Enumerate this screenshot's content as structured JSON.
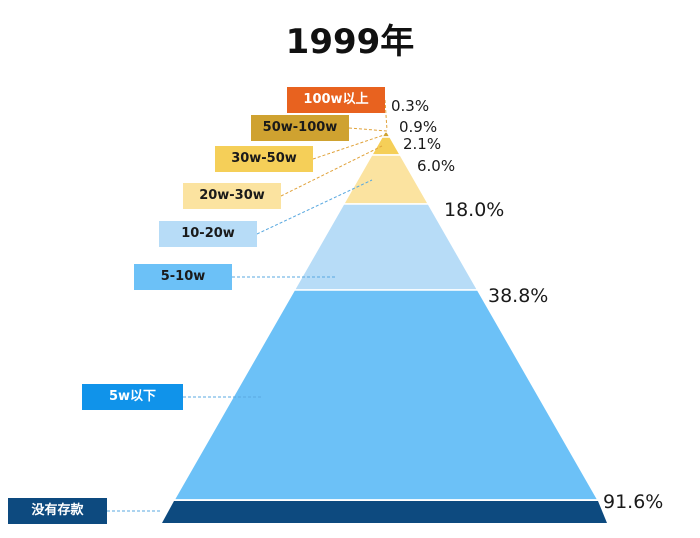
{
  "title": "1999年",
  "levels": [
    {
      "label": "100w以上",
      "percent": "0.3%",
      "color": "#e8621f",
      "text_color": "#ffffff"
    },
    {
      "label": "50w-100w",
      "percent": "0.9%",
      "color": "#cfa230",
      "text_color": "#1a1a1a"
    },
    {
      "label": "30w-50w",
      "percent": "2.1%",
      "color": "#f5cf58",
      "text_color": "#1a1a1a"
    },
    {
      "label": "20w-30w",
      "percent": "6.0%",
      "color": "#fbe3a0",
      "text_color": "#1a1a1a"
    },
    {
      "label": "10-20w",
      "percent": "18.0%",
      "color": "#b7dcf7",
      "text_color": "#1a1a1a"
    },
    {
      "label": "5-10w",
      "percent": "38.8%",
      "color": "#6cc1f7",
      "text_color": "#1a1a1a"
    },
    {
      "label": "5w以下",
      "percent": "",
      "color": "#1093ea",
      "text_color": "#ffffff"
    },
    {
      "label": "没有存款",
      "percent": "91.6%",
      "color": "#0d4a7f",
      "text_color": "#ffffff"
    }
  ]
}
